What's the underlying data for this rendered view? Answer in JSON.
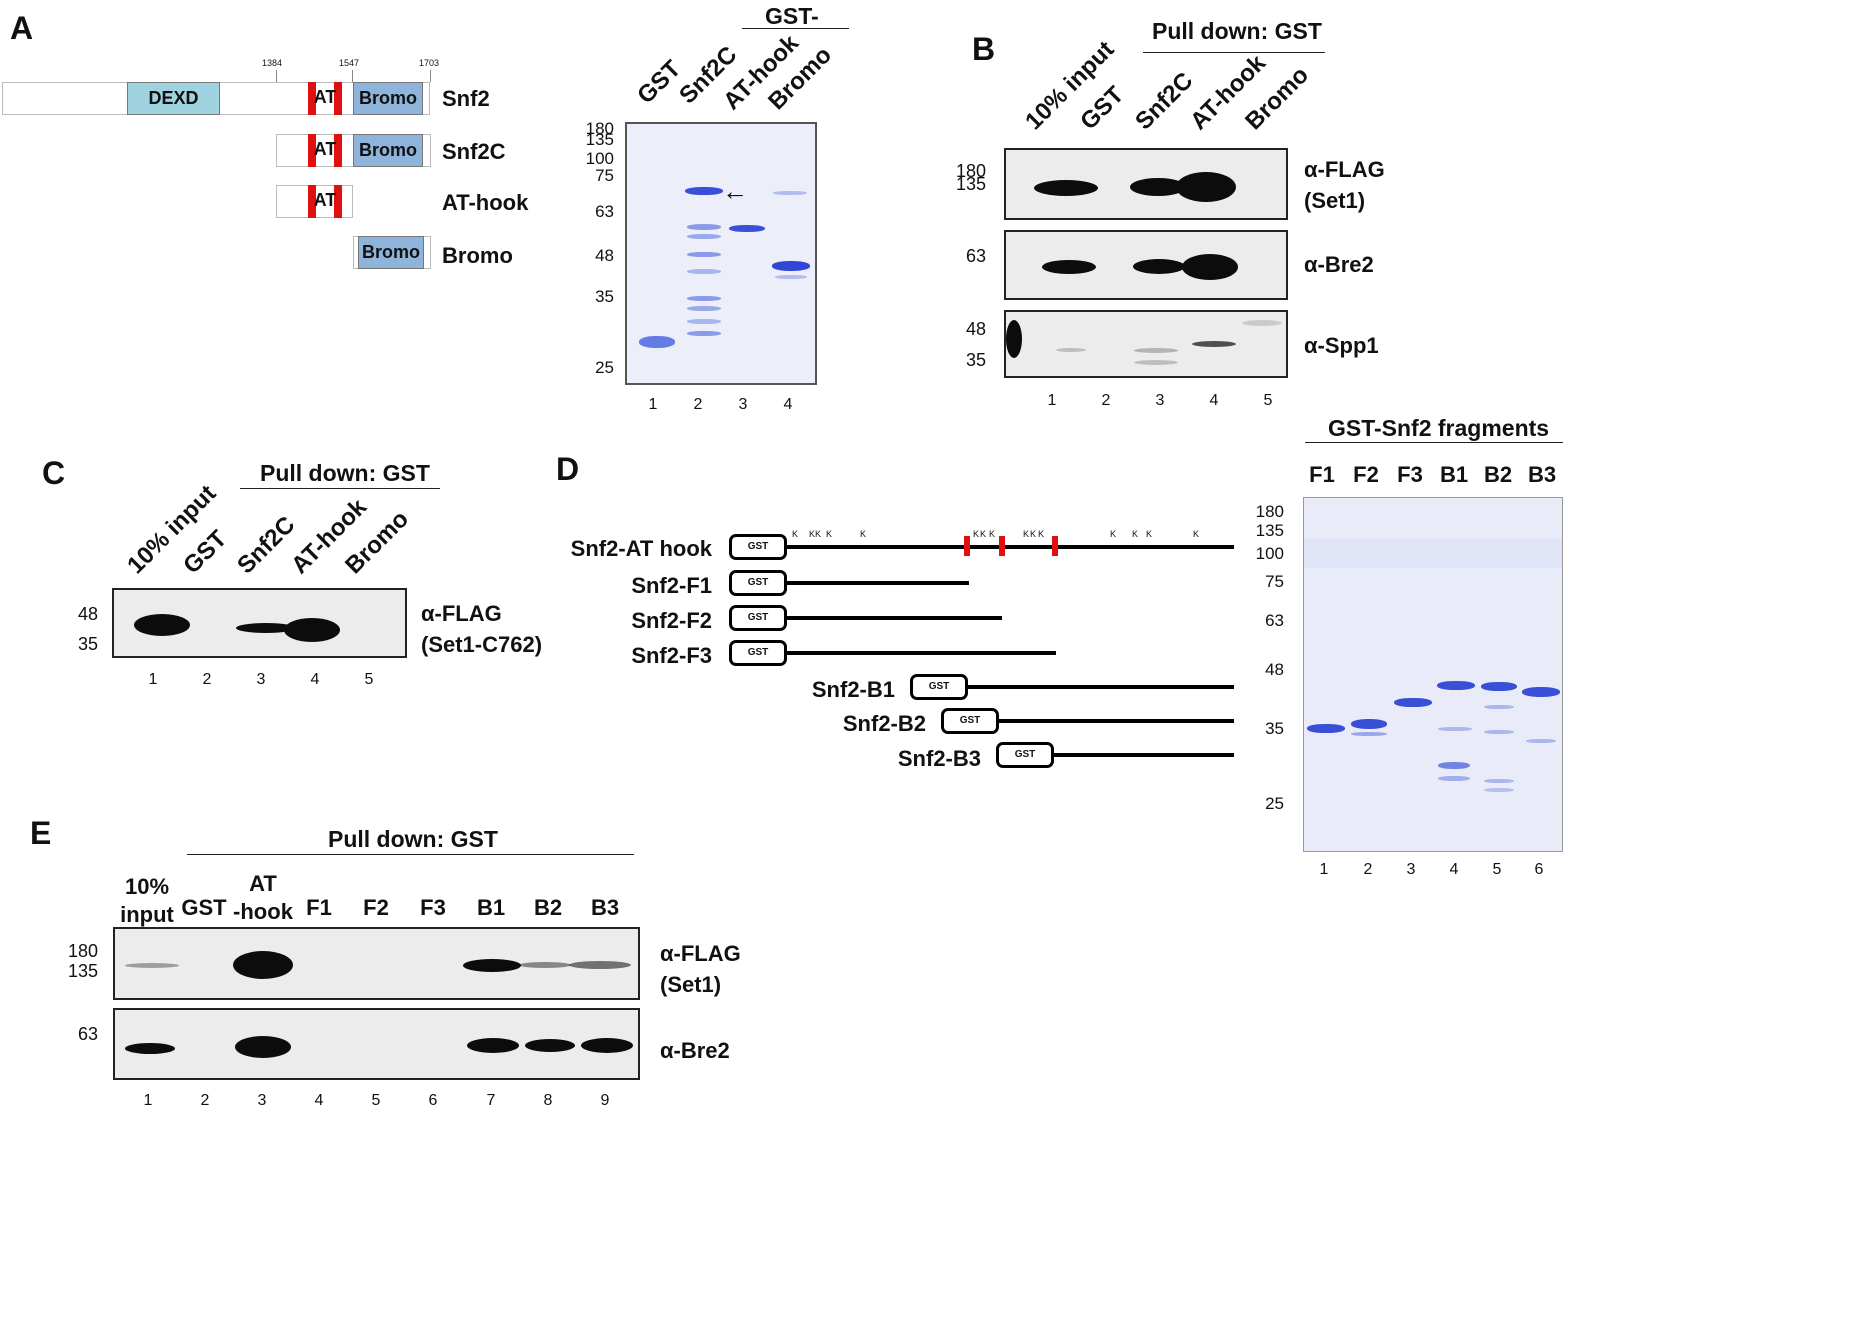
{
  "panelA": {
    "label": "A",
    "ticks": [
      "1384",
      "1547",
      "1703"
    ],
    "domains": {
      "dexd": "DEXD",
      "at": "AT",
      "bromo": "Bromo"
    },
    "constructs": [
      "Snf2",
      "Snf2C",
      "AT-hook",
      "Bromo"
    ],
    "gel": {
      "header": "GST-",
      "lane_titles": [
        "GST",
        "Snf2C",
        "AT-hook",
        "Bromo"
      ],
      "mw_markers": [
        "180",
        "135",
        "100",
        "75",
        "63",
        "48",
        "35",
        "25"
      ],
      "lanes": [
        "1",
        "2",
        "3",
        "4"
      ],
      "arrow": "←"
    }
  },
  "panelB": {
    "label": "B",
    "header": "Pull down: GST",
    "lane_titles": [
      "10% input",
      "GST",
      "Snf2C",
      "AT-hook",
      "Bromo"
    ],
    "blots": [
      {
        "antibody": [
          "α-FLAG",
          "(Set1)"
        ],
        "mw": [
          "180",
          "135"
        ]
      },
      {
        "antibody": [
          "α-Bre2"
        ],
        "mw": [
          "63"
        ]
      },
      {
        "antibody": [
          "α-Spp1"
        ],
        "mw": [
          "48",
          "35"
        ]
      }
    ],
    "lanes": [
      "1",
      "2",
      "3",
      "4",
      "5"
    ]
  },
  "panelC": {
    "label": "C",
    "header": "Pull down: GST",
    "lane_titles": [
      "10% input",
      "GST",
      "Snf2C",
      "AT-hook",
      "Bromo"
    ],
    "antibody": [
      "α-FLAG",
      "(Set1-C762)"
    ],
    "mw": [
      "48",
      "35"
    ],
    "lanes": [
      "1",
      "2",
      "3",
      "4",
      "5"
    ]
  },
  "panelD": {
    "label": "D",
    "tag": "GST",
    "lysine": "K",
    "constructs": [
      "Snf2-AT hook",
      "Snf2-F1",
      "Snf2-F2",
      "Snf2-F3",
      "Snf2-B1",
      "Snf2-B2",
      "Snf2-B3"
    ],
    "gel": {
      "header": "GST-Snf2 fragments",
      "lane_titles": [
        "F1",
        "F2",
        "F3",
        "B1",
        "B2",
        "B3"
      ],
      "mw_markers": [
        "180",
        "135",
        "100",
        "75",
        "63",
        "48",
        "35",
        "25"
      ],
      "lanes": [
        "1",
        "2",
        "3",
        "4",
        "5",
        "6"
      ]
    }
  },
  "panelE": {
    "label": "E",
    "header": "Pull down: GST",
    "lane_titles": [
      [
        "10%",
        "input"
      ],
      [
        "GST"
      ],
      [
        "AT",
        "-hook"
      ],
      [
        "F1"
      ],
      [
        "F2"
      ],
      [
        "F3"
      ],
      [
        "B1"
      ],
      [
        "B2"
      ],
      [
        "B3"
      ]
    ],
    "blots": [
      {
        "antibody": [
          "α-FLAG",
          "(Set1)"
        ],
        "mw": [
          "180",
          "135"
        ]
      },
      {
        "antibody": [
          "α-Bre2"
        ],
        "mw": [
          "63"
        ]
      }
    ],
    "lanes": [
      "1",
      "2",
      "3",
      "4",
      "5",
      "6",
      "7",
      "8",
      "9"
    ]
  },
  "colors": {
    "dexd": "#9fd3e0",
    "bromo": "#8fb4dc",
    "at_stripe": "#e01010",
    "gel_band": "#3a4fd8"
  }
}
